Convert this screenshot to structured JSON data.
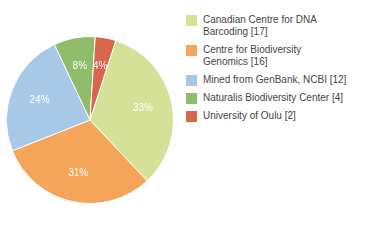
{
  "chart_data": {
    "type": "pie",
    "categories": [
      "Canadian Centre for DNA\nBarcoding [17]",
      "Centre for Biodiversity\nGenomics [16]",
      "Mined from GenBank, NCBI [12]",
      "Naturalis Biodiversity Center [4]",
      "University of Oulu [2]"
    ],
    "values": [
      33,
      31,
      24,
      8,
      4
    ],
    "value_labels": [
      "33%",
      "31%",
      "24%",
      "8%",
      "4%"
    ],
    "colors": [
      "#d4e196",
      "#f5a55a",
      "#a8c8e8",
      "#8fbc6a",
      "#d9654a"
    ],
    "data_labels": true,
    "legend": "right"
  }
}
